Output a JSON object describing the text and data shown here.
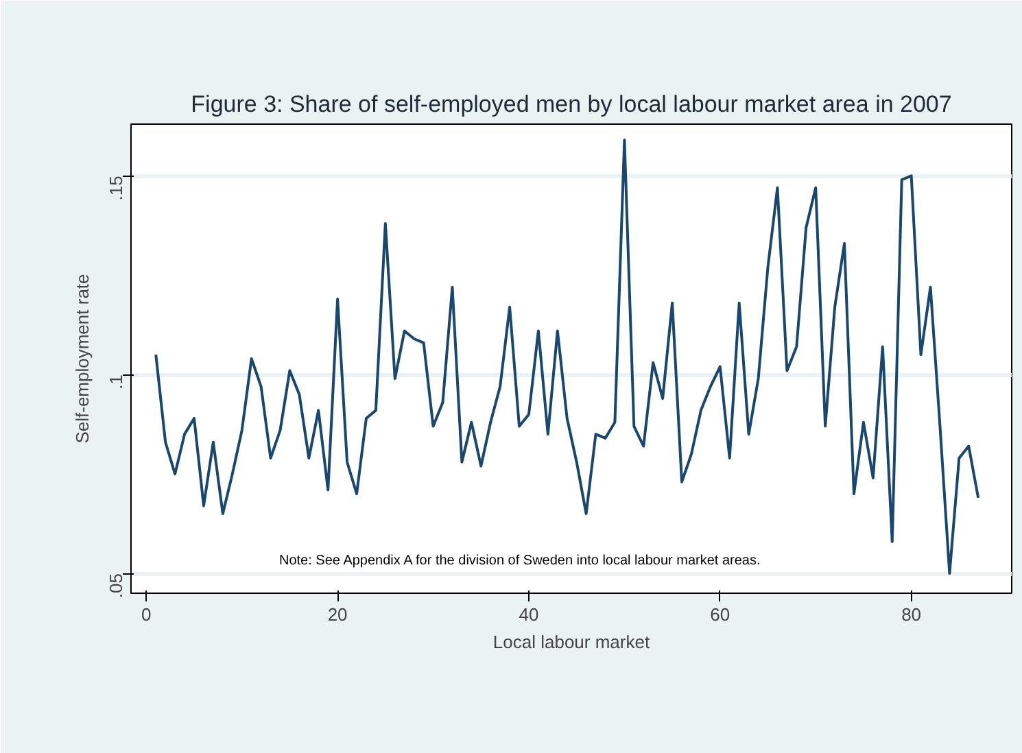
{
  "chart_data": {
    "type": "line",
    "title": "Figure 3: Share of self-employed men by local labour market area in 2007",
    "xlabel": "Local labour market",
    "ylabel": "Self-employment rate",
    "annotations": [
      "Note: See Appendix A for the division of Sweden into local labour market areas."
    ],
    "x": [
      1,
      2,
      3,
      4,
      5,
      6,
      7,
      8,
      9,
      10,
      11,
      12,
      13,
      14,
      15,
      16,
      17,
      18,
      19,
      20,
      21,
      22,
      23,
      24,
      25,
      26,
      27,
      28,
      29,
      30,
      31,
      32,
      33,
      34,
      35,
      36,
      37,
      38,
      39,
      40,
      41,
      42,
      43,
      44,
      45,
      46,
      47,
      48,
      49,
      50,
      51,
      52,
      53,
      54,
      55,
      56,
      57,
      58,
      59,
      60,
      61,
      62,
      63,
      64,
      65,
      66,
      67,
      68,
      69,
      70,
      71,
      72,
      73,
      74,
      75,
      76,
      77,
      78,
      79,
      80,
      81,
      82,
      83,
      84,
      85,
      86,
      87
    ],
    "series": [
      {
        "color": "#1a476f",
        "values": [
          0.105,
          0.083,
          0.075,
          0.085,
          0.089,
          0.067,
          0.083,
          0.065,
          0.075,
          0.086,
          0.104,
          0.097,
          0.079,
          0.086,
          0.101,
          0.095,
          0.079,
          0.091,
          0.071,
          0.119,
          0.078,
          0.07,
          0.089,
          0.091,
          0.138,
          0.099,
          0.111,
          0.109,
          0.108,
          0.087,
          0.093,
          0.122,
          0.078,
          0.088,
          0.077,
          0.088,
          0.097,
          0.117,
          0.087,
          0.09,
          0.111,
          0.085,
          0.111,
          0.089,
          0.078,
          0.065,
          0.085,
          0.084,
          0.088,
          0.159,
          0.087,
          0.082,
          0.103,
          0.094,
          0.118,
          0.073,
          0.08,
          0.091,
          0.097,
          0.102,
          0.079,
          0.118,
          0.085,
          0.099,
          0.127,
          0.147,
          0.101,
          0.107,
          0.137,
          0.147,
          0.087,
          0.117,
          0.133,
          0.07,
          0.088,
          0.074,
          0.107,
          0.058,
          0.149,
          0.15,
          0.105,
          0.122,
          0.087,
          0.05,
          0.079,
          0.082,
          0.069
        ]
      }
    ],
    "xlim": [
      -1.6,
      90.5
    ],
    "ylim": [
      0.045,
      0.163
    ],
    "xticks": [
      0,
      20,
      40,
      60,
      80
    ],
    "yticks": [
      {
        "value": 0.05,
        "label": ".05"
      },
      {
        "value": 0.1,
        "label": ".1"
      },
      {
        "value": 0.15,
        "label": ".15"
      }
    ],
    "grid": "y",
    "line_style": "solid"
  }
}
